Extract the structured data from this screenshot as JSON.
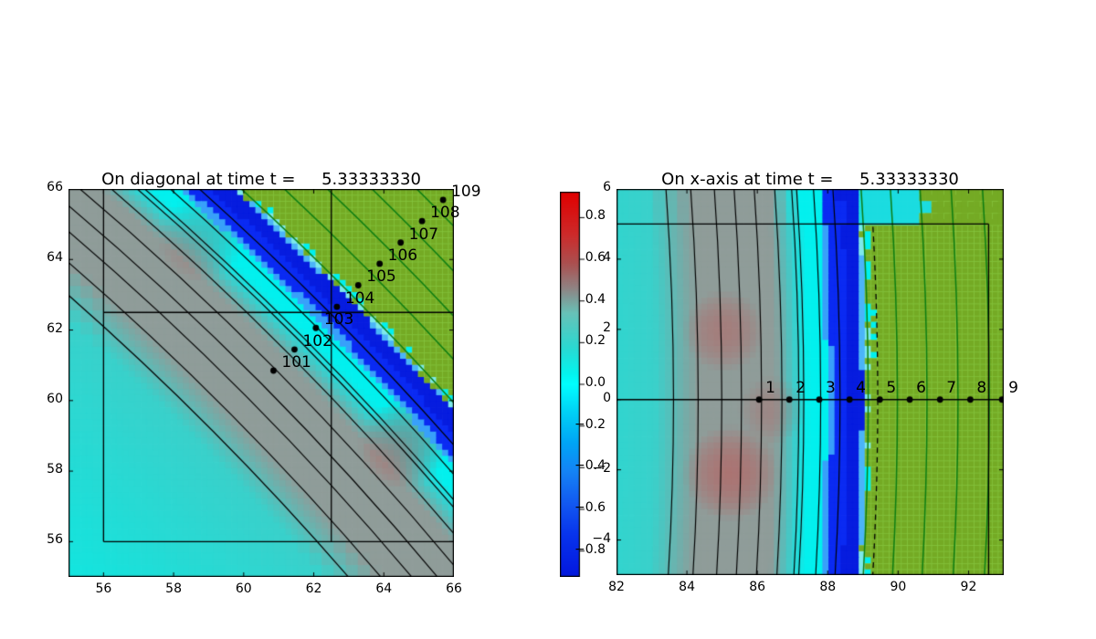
{
  "chart_data": [
    {
      "type": "heatmap",
      "title": "On diagonal at time t =     5.33333330",
      "xlim": [
        55,
        66
      ],
      "ylim": [
        55,
        66
      ],
      "xticks": {
        "values": [
          56,
          58,
          60,
          62,
          64,
          66
        ],
        "labels": [
          "56",
          "58",
          "60",
          "62",
          "64",
          "66"
        ]
      },
      "yticks": {
        "values": [
          66,
          64,
          62,
          60,
          58,
          56
        ],
        "labels": [
          "66",
          "64",
          "62",
          "60",
          "58",
          "56"
        ]
      },
      "points": {
        "labels": [
          "101",
          "102",
          "103",
          "104",
          "105",
          "106",
          "107",
          "108",
          "109"
        ],
        "x": [
          60.85,
          61.45,
          62.06,
          62.66,
          63.27,
          63.88,
          64.48,
          65.09,
          65.69
        ],
        "y": [
          60.85,
          61.45,
          62.06,
          62.66,
          63.27,
          63.88,
          64.48,
          65.09,
          65.69
        ]
      },
      "box_segments": [
        [
          56,
          56,
          56,
          66
        ],
        [
          56,
          56,
          66,
          56
        ],
        [
          62.5,
          56,
          62.5,
          66
        ],
        [
          56,
          62.5,
          66,
          62.5
        ]
      ],
      "fine_region": {
        "x": [
          56,
          67
        ],
        "y": [
          56,
          67
        ]
      },
      "blobs": [
        {
          "x": 64.55,
          "y": 58.75,
          "rad": 1.25,
          "amp": 0.5
        },
        {
          "x": 58.75,
          "y": 64.55,
          "rad": 1.2,
          "amp": 0.3
        }
      ],
      "draw_dashed": false,
      "label_offset": [
        9,
        -17
      ]
    },
    {
      "type": "heatmap",
      "title": "On x-axis at time t =     5.33333330",
      "xlim": [
        82,
        93
      ],
      "ylim": [
        -5,
        6
      ],
      "xticks": {
        "values": [
          82,
          84,
          86,
          88,
          90,
          92
        ],
        "labels": [
          "82",
          "84",
          "86",
          "88",
          "90",
          "92"
        ]
      },
      "yticks": {
        "values": [
          6,
          4,
          2,
          0,
          -2,
          -4
        ],
        "labels": [
          "6",
          "4",
          "2",
          "0",
          "−2",
          "−4"
        ]
      },
      "points": {
        "labels": [
          "1",
          "2",
          "3",
          "4",
          "5",
          "6",
          "7",
          "8",
          "9"
        ],
        "x": [
          86.05,
          86.91,
          87.76,
          88.62,
          89.48,
          90.33,
          91.19,
          92.05,
          92.95
        ],
        "y": [
          0,
          0,
          0,
          0,
          0,
          0,
          0,
          0,
          0
        ]
      },
      "box_segments": [
        [
          82,
          5,
          92.57,
          5
        ],
        [
          92.57,
          -5,
          92.57,
          5
        ],
        [
          82,
          0,
          93,
          0
        ]
      ],
      "fine_region": {
        "x": [
          -999,
          999
        ],
        "y": [
          -999,
          5
        ]
      },
      "blobs": [
        {
          "x": 85.25,
          "y": -2.1,
          "rad": 1.35,
          "amp": 0.55
        },
        {
          "x": 85.05,
          "y": 1.95,
          "rad": 1.15,
          "amp": 0.42
        },
        {
          "x": 86.45,
          "y": -0.3,
          "rad": 0.95,
          "amp": 0.28
        }
      ],
      "draw_dashed": true,
      "dashed_clip_y": 5,
      "label_offset": [
        7,
        -21
      ]
    }
  ],
  "field": {
    "cell_fine": 0.172,
    "cell_coarse": 0.344,
    "base_stops": [
      [
        77,
        "#0de8e2"
      ],
      [
        83.1,
        "#3ad1cb"
      ],
      [
        84.35,
        "#909c99"
      ],
      [
        86.5,
        "#8f9c99"
      ],
      [
        87.45,
        "#04f0ee"
      ],
      [
        87.95,
        "#00f0ee"
      ]
    ],
    "bands": [
      {
        "r": [
          87.95,
          88.12
        ],
        "color": "#38a0fa"
      },
      {
        "r": [
          88.12,
          88.55
        ],
        "color": "#0a2af2"
      },
      {
        "r": [
          88.55,
          88.97
        ],
        "color": "#061cdf"
      }
    ],
    "fringe_fine": [
      {
        "r": [
          88.97,
          89.06
        ],
        "color": "#4bb4f8"
      },
      {
        "r": [
          89.06,
          89.16
        ],
        "color": "#7de9ea"
      }
    ],
    "olive": {
      "color": "#74aa24",
      "start_fine": 89.16,
      "start_coarse": 91.0,
      "coarse_fill": "#1bdce0"
    },
    "blob_color": "#c05555",
    "mesh_color": "rgba(150,225,90,0.45)",
    "contours": {
      "black": [
        83.62,
        84.32,
        84.99,
        85.55,
        86.12,
        86.7,
        87.18,
        87.32,
        87.8,
        88.35
      ],
      "green": [
        89.15,
        89.98,
        90.82,
        91.7,
        92.59,
        93.43
      ],
      "dashed": [
        89.42
      ]
    },
    "contour_green_color": "#0c7d12"
  },
  "colorbar": {
    "range": [
      -0.92,
      0.92
    ],
    "ticks": [
      {
        "v": 0.8,
        "label": "0.8"
      },
      {
        "v": 0.6,
        "label": "0.6"
      },
      {
        "v": 0.4,
        "label": "0.4"
      },
      {
        "v": 0.2,
        "label": "0.2"
      },
      {
        "v": 0.0,
        "label": "0.0"
      },
      {
        "v": -0.2,
        "label": "−0.2"
      },
      {
        "v": -0.4,
        "label": "−0.4"
      },
      {
        "v": -0.6,
        "label": "−0.6"
      },
      {
        "v": -0.8,
        "label": "−0.8"
      }
    ],
    "stops": [
      [
        0.92,
        "#e00000"
      ],
      [
        0.72,
        "#cd2a2a"
      ],
      [
        0.58,
        "#ab5050"
      ],
      [
        0.46,
        "#8f8484"
      ],
      [
        0.34,
        "#67c2b8"
      ],
      [
        0.18,
        "#2cd8d1"
      ],
      [
        0.05,
        "#04f4ee"
      ],
      [
        0.0,
        "#00ffff"
      ],
      [
        -0.12,
        "#00d5f6"
      ],
      [
        -0.28,
        "#00a5f5"
      ],
      [
        -0.42,
        "#1583f5"
      ],
      [
        -0.58,
        "#1257f1"
      ],
      [
        -0.72,
        "#0834ec"
      ],
      [
        -0.88,
        "#041de2"
      ],
      [
        -0.92,
        "#0319dc"
      ]
    ]
  }
}
